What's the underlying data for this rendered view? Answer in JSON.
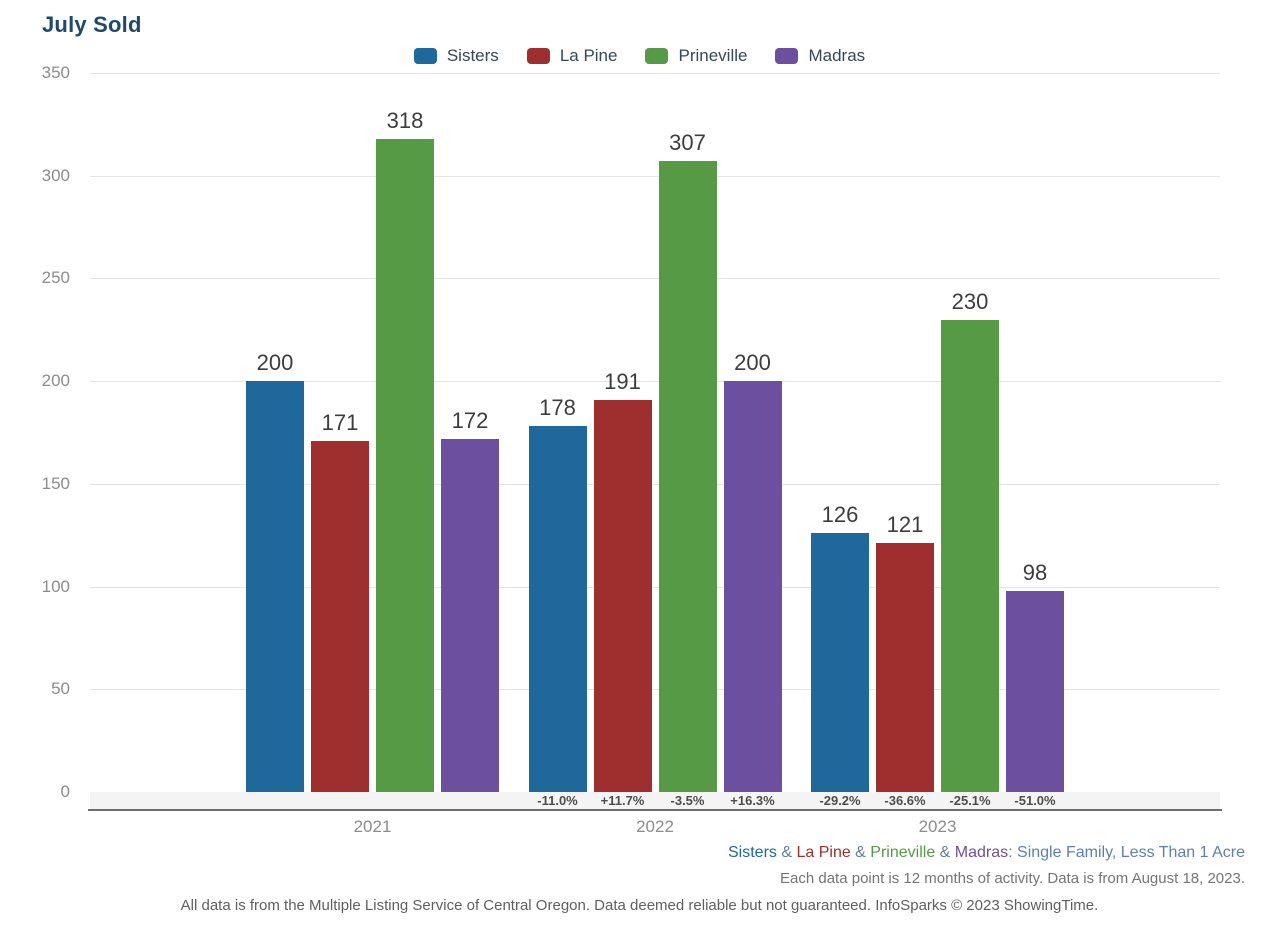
{
  "title": "July Sold",
  "colors": {
    "sisters": "#1e689b",
    "la_pine": "#9e2f2e",
    "prineville": "#579a46",
    "madras": "#6d4fa0",
    "title_text": "#1e4a6d",
    "grid": "#e4e4e4",
    "axis_line": "#6e6e6e",
    "tick_text": "#8c8c8c",
    "footer_note_text": "#757575"
  },
  "chart_data": {
    "type": "bar",
    "title": "July Sold",
    "categories": [
      "2021",
      "2022",
      "2023"
    ],
    "series": [
      {
        "name": "Sisters",
        "color": "#1e689b",
        "values": [
          200,
          178,
          126
        ],
        "pct_change": [
          null,
          "-11.0%",
          "-29.2%"
        ]
      },
      {
        "name": "La Pine",
        "color": "#9e2f2e",
        "values": [
          171,
          191,
          121
        ],
        "pct_change": [
          null,
          "+11.7%",
          "-36.6%"
        ]
      },
      {
        "name": "Prineville",
        "color": "#579a46",
        "values": [
          318,
          307,
          230
        ],
        "pct_change": [
          null,
          "-3.5%",
          "-25.1%"
        ]
      },
      {
        "name": "Madras",
        "color": "#6d4fa0",
        "values": [
          172,
          200,
          98
        ],
        "pct_change": [
          null,
          "+16.3%",
          "-51.0%"
        ]
      }
    ],
    "xlabel": "",
    "ylabel": "",
    "ylim": [
      0,
      350
    ],
    "yticks": [
      0,
      50,
      100,
      150,
      200,
      250,
      300,
      350
    ],
    "grid": true,
    "legend_position": "top-center"
  },
  "footer": {
    "filter_line": {
      "segments": [
        {
          "text": "Sisters",
          "color": "#1e689b"
        },
        {
          "text": " & ",
          "color": "#607d9e"
        },
        {
          "text": "La Pine",
          "color": "#9e2f2e"
        },
        {
          "text": " & ",
          "color": "#607d9e"
        },
        {
          "text": "Prineville",
          "color": "#579a46"
        },
        {
          "text": " & ",
          "color": "#607d9e"
        },
        {
          "text": "Madras",
          "color": "#6d4fa0"
        },
        {
          "text": ": Single Family, Less Than 1 Acre",
          "color": "#5d80b2"
        }
      ]
    },
    "activity_note": "Each data point is 12 months of activity. Data is from August 18, 2023.",
    "disclaimer": "All data is from the Multiple Listing Service of Central Oregon. Data deemed reliable but not guaranteed. InfoSparks © 2023 ShowingTime."
  }
}
